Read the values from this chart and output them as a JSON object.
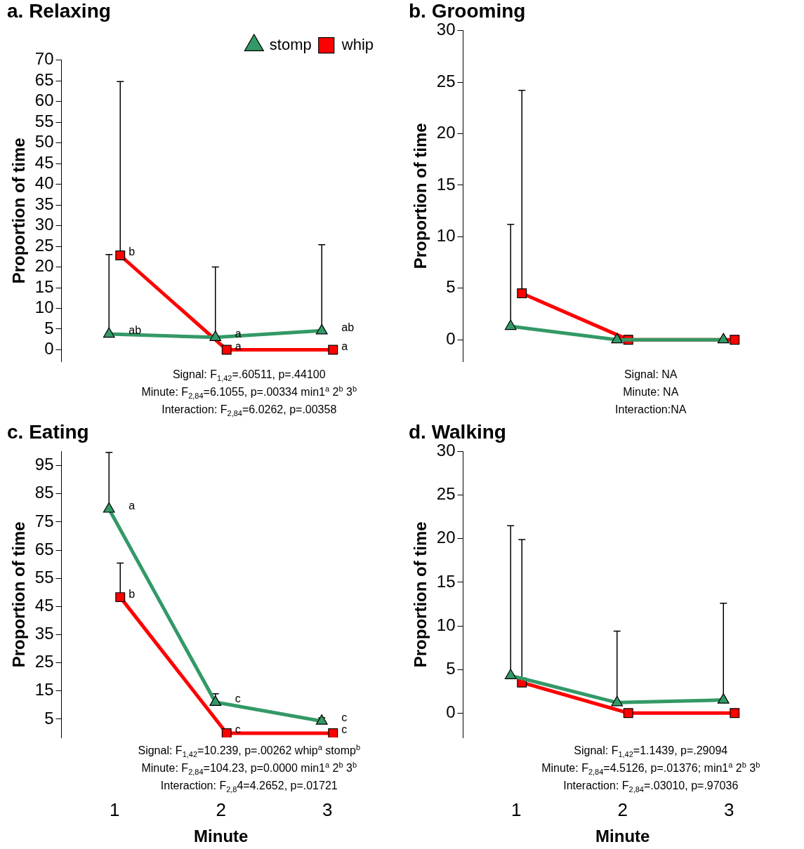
{
  "chart_data": [
    {
      "type": "line",
      "title": "a. Relaxing",
      "ylabel": "Proportion of time",
      "categories": [
        "1",
        "2",
        "3"
      ],
      "ylim": [
        -2.8,
        70
      ],
      "yticks": [
        0,
        5,
        10,
        15,
        20,
        25,
        30,
        35,
        40,
        45,
        50,
        55,
        60,
        65,
        70
      ],
      "tick_labels": "y",
      "legend": "top right",
      "grid": false,
      "series": [
        {
          "name": "stomp",
          "color": "#339966",
          "marker": "triangle",
          "values": [
            3.8,
            3.0,
            4.6
          ],
          "errors": [
            [
              3.8,
              23
            ],
            [
              3.0,
              20
            ],
            [
              4.6,
              25.4
            ]
          ]
        },
        {
          "name": "whip",
          "color": "#ff0000",
          "marker": "square",
          "values": [
            22.8,
            0,
            0
          ],
          "errors": [
            [
              22.8,
              64.8
            ],
            null,
            null
          ]
        }
      ],
      "annotations": [
        {
          "text": "ab",
          "x": "1",
          "y": 3.8
        },
        {
          "text": "b",
          "x": "1",
          "y": 22.8
        },
        {
          "text": "a",
          "x": "2",
          "y": 3.0
        },
        {
          "text": "a",
          "x": "2",
          "y": 0
        },
        {
          "text": "ab",
          "x": "3",
          "y": 4.6
        },
        {
          "text": "a",
          "x": "3",
          "y": 0
        },
        "Signal: F$_{1,42}$=.60511, p=.44100",
        "Minute: F$_{2,84}$=6.1055, p=.00334 min1$^{a}$ 2$^{b}$ 3$^{b}$",
        "Interaction: F$_{2,84}$=6.0262, p=.00358"
      ]
    },
    {
      "type": "line",
      "title": "b. Grooming",
      "ylabel": "Proportion of time",
      "categories": [
        "1",
        "2",
        "3"
      ],
      "ylim": [
        -2.1,
        30
      ],
      "yticks": [
        0,
        5,
        10,
        15,
        20,
        25,
        30
      ],
      "tick_labels": "y",
      "grid": false,
      "series": [
        {
          "color": "#339966",
          "marker": "triangle",
          "values": [
            1.3,
            0,
            0
          ],
          "errors": [
            [
              1.3,
              11.2
            ],
            null,
            null
          ]
        },
        {
          "color": "#ff0000",
          "marker": "square",
          "values": [
            4.5,
            0,
            0
          ],
          "errors": [
            [
              4.5,
              24.2
            ],
            null,
            null
          ]
        }
      ],
      "annotations": [
        "Signal: NA",
        "Minute: NA",
        "Interaction:NA"
      ]
    },
    {
      "type": "line",
      "title": "c. Eating",
      "ylabel": "Proportion of time",
      "xlabel": "Minute",
      "categories": [
        "1",
        "2",
        "3"
      ],
      "ylim": [
        -1.5,
        100
      ],
      "yticks": [
        5,
        15,
        25,
        35,
        45,
        55,
        65,
        75,
        85,
        95
      ],
      "grid": false,
      "series": [
        {
          "color": "#339966",
          "marker": "triangle",
          "values": [
            79.6,
            11.0,
            4.3
          ],
          "errors": [
            [
              79.6,
              99.7
            ],
            [
              11.0,
              14.0
            ],
            [
              4.3,
              5.5
            ]
          ]
        },
        {
          "color": "#ff0000",
          "marker": "square",
          "values": [
            48.3,
            0,
            0
          ],
          "errors": [
            [
              48.3,
              60.4
            ],
            null,
            null
          ]
        }
      ],
      "annotations": [
        {
          "text": "a",
          "x": "1",
          "y": 79.6
        },
        {
          "text": "b",
          "x": "1",
          "y": 48.3
        },
        {
          "text": "c",
          "x": "2",
          "y": 11.0
        },
        {
          "text": "c",
          "x": "2",
          "y": 0
        },
        {
          "text": "c",
          "x": "3",
          "y": 4.3
        },
        {
          "text": "c",
          "x": "3",
          "y": 0
        },
        "Signal: F$_{1,42}$=10.239, p=.00262 whip$^{a}$ stomp$^{b}$",
        "Minute: F$_{2,84}$=104.23, p=0.0000 min1$^{a}$ 2$^{b}$ 3$^{b}$",
        "Interaction: F$_{2,8}$4=4.2652, p=.01721"
      ]
    },
    {
      "type": "line",
      "title": "d. Walking",
      "ylabel": "Proportion of time",
      "xlabel": "Minute",
      "categories": [
        "1",
        "2",
        "3"
      ],
      "ylim": [
        -2.8,
        30
      ],
      "yticks": [
        0,
        5,
        10,
        15,
        20,
        25,
        30
      ],
      "grid": false,
      "series": [
        {
          "color": "#339966",
          "marker": "triangle",
          "values": [
            4.3,
            1.2,
            1.5
          ],
          "errors": [
            [
              4.3,
              21.5
            ],
            [
              1.2,
              9.4
            ],
            [
              1.5,
              12.6
            ]
          ]
        },
        {
          "color": "#ff0000",
          "marker": "square",
          "values": [
            3.5,
            0,
            0
          ],
          "errors": [
            [
              3.5,
              19.9
            ],
            null,
            null
          ]
        }
      ],
      "annotations": [
        "Signal: F$_{1,42}$=1.1439, p=.29094",
        "Minute: F$_{2,84}$=4.5126, p=.01376; min1$^{a}$ 2$^{b}$ 3$^{b}$",
        "Interaction: F$_{2,84}$=.03010, p=.97036"
      ]
    }
  ]
}
